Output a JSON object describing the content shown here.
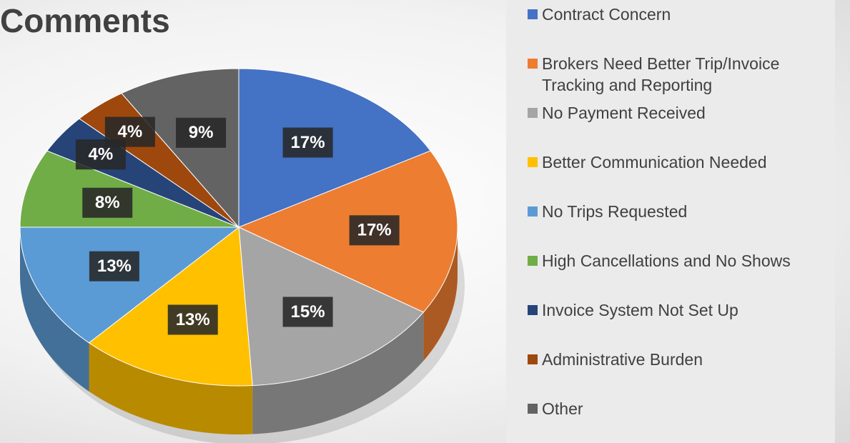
{
  "chart_data": {
    "type": "pie",
    "title": "Comments",
    "categories": [
      "Contract Concern",
      "Brokers Need Better Trip/Invoice Tracking and Reporting",
      "No Payment Received",
      "Better Communication Needed",
      "No Trips Requested",
      "High Cancellations and No Shows",
      "Invoice System Not Set Up",
      "Administrative Burden",
      "Other"
    ],
    "values": [
      17,
      17,
      15,
      13,
      13,
      8,
      4,
      4,
      9
    ],
    "value_labels": [
      "17%",
      "17%",
      "15%",
      "13%",
      "13%",
      "8%",
      "4%",
      "4%",
      "9%"
    ],
    "colors": [
      "#4472c4",
      "#ed7d31",
      "#a5a5a5",
      "#ffc000",
      "#5b9bd5",
      "#70ad47",
      "#264478",
      "#9e480e",
      "#636363"
    ],
    "legend": "right"
  }
}
